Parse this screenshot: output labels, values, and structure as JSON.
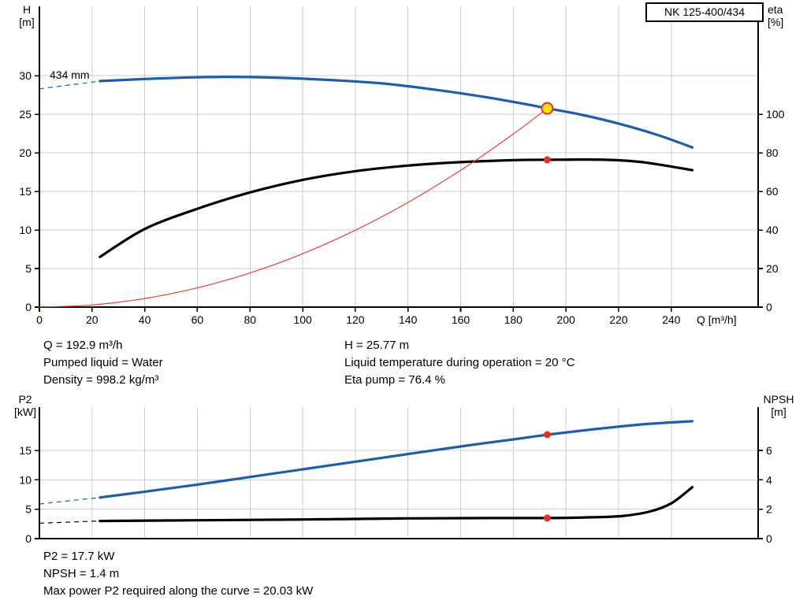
{
  "title_box": "NK 125-400/434",
  "impeller_label": "434 mm",
  "axis_labels": {
    "h": [
      "H",
      "[m]"
    ],
    "eta": [
      "eta",
      "[%]"
    ],
    "p2": [
      "P2",
      "[kW]"
    ],
    "npsh": [
      "NPSH",
      "[m]"
    ],
    "q": "Q [m³/h]"
  },
  "colors": {
    "curve_blue": "#1d5fa7",
    "curve_black": "#000000",
    "curve_red": "#e8403a",
    "marker_red": "#e33029",
    "duty_fill": "#ffdf00",
    "grid": "#cccccc",
    "axis": "#000000"
  },
  "info_top": {
    "q": "Q = 192.9 m³/h",
    "pumped_liquid": "Pumped liquid = Water",
    "density": "Density = 998.2 kg/m³",
    "h": "H = 25.77 m",
    "liquid_temperature": "Liquid temperature during operation = 20 °C",
    "eta_pump": "Eta pump = 76.4 %"
  },
  "info_bottom": {
    "p2": "P2 = 17.7 kW",
    "npsh": "NPSH = 1.4 m",
    "max_power": "Max power P2 required along the curve = 20.03 kW"
  },
  "chart_data": [
    {
      "type": "line",
      "name": "qh-eta-chart",
      "title": "NK 125-400/434",
      "xlabel": "Q [m³/h]",
      "ylabel_left": "H [m]",
      "ylabel_right": "eta [%]",
      "xlim": [
        0,
        273
      ],
      "xticks": [
        0,
        20,
        40,
        60,
        80,
        100,
        120,
        140,
        160,
        180,
        200,
        220,
        240
      ],
      "ylim_left": [
        0,
        39
      ],
      "yticks_left": [
        0,
        5,
        10,
        15,
        20,
        25,
        30
      ],
      "ylim_right": [
        0,
        156
      ],
      "yticks_right": [
        0,
        20,
        40,
        60,
        80,
        100
      ],
      "grid": true,
      "series": [
        {
          "name": "head-curve-434mm",
          "axis": "left",
          "color": "#1d5fa7",
          "width": 3.2,
          "dashed_prefix": [
            [
              0,
              28.3
            ],
            [
              23,
              29.3
            ]
          ],
          "points": [
            [
              23,
              29.3
            ],
            [
              45,
              29.65
            ],
            [
              70,
              29.85
            ],
            [
              90,
              29.75
            ],
            [
              110,
              29.45
            ],
            [
              130,
              29.0
            ],
            [
              150,
              28.2
            ],
            [
              170,
              27.2
            ],
            [
              185,
              26.3
            ],
            [
              192.9,
              25.77
            ],
            [
              205,
              25.0
            ],
            [
              220,
              23.8
            ],
            [
              235,
              22.3
            ],
            [
              248,
              20.7
            ]
          ]
        },
        {
          "name": "efficiency-curve",
          "axis": "right",
          "color": "#000000",
          "width": 3.2,
          "points": [
            [
              23,
              26
            ],
            [
              40,
              40.5
            ],
            [
              60,
              51
            ],
            [
              80,
              59.5
            ],
            [
              100,
              66
            ],
            [
              120,
              70.5
            ],
            [
              140,
              73.4
            ],
            [
              160,
              75.2
            ],
            [
              180,
              76.2
            ],
            [
              193,
              76.4
            ],
            [
              215,
              76.4
            ],
            [
              230,
              75
            ],
            [
              248,
              71
            ]
          ]
        },
        {
          "name": "duty-system-curve",
          "axis": "left",
          "color": "#e8403a",
          "width": 1.2,
          "points": [
            [
              0,
              0
            ],
            [
              20,
              0.28
            ],
            [
              40,
              1.11
            ],
            [
              60,
              2.49
            ],
            [
              80,
              4.43
            ],
            [
              100,
              6.92
            ],
            [
              120,
              9.97
            ],
            [
              140,
              13.57
            ],
            [
              160,
              17.73
            ],
            [
              180,
              22.44
            ],
            [
              192.9,
              25.77
            ]
          ]
        }
      ],
      "markers": [
        {
          "name": "duty-point",
          "x": 192.9,
          "y": 25.77,
          "axis": "left",
          "r": 7,
          "fill": "#ffdf00",
          "stroke": "#e33029"
        },
        {
          "name": "efficiency-point",
          "x": 192.9,
          "y": 76.4,
          "axis": "right",
          "r": 4.5,
          "fill": "#e33029"
        }
      ]
    },
    {
      "type": "line",
      "name": "p2-npsh-chart",
      "xlabel": "",
      "ylabel_left": "P2 [kW]",
      "ylabel_right": "NPSH [m]",
      "xlim": [
        0,
        273
      ],
      "xticks": [
        0,
        20,
        40,
        60,
        80,
        100,
        120,
        140,
        160,
        180,
        200,
        220,
        240
      ],
      "ylim_left": [
        0,
        22.4
      ],
      "yticks_left": [
        0,
        5,
        10,
        15
      ],
      "ylim_right": [
        0,
        8.95
      ],
      "yticks_right": [
        0,
        2,
        4,
        6
      ],
      "grid": true,
      "series": [
        {
          "name": "p2-curve",
          "axis": "left",
          "color": "#1d5fa7",
          "width": 3.2,
          "dashed_prefix": [
            [
              0,
              5.9
            ],
            [
              23,
              7.0
            ]
          ],
          "points": [
            [
              23,
              7.0
            ],
            [
              40,
              8.0
            ],
            [
              60,
              9.2
            ],
            [
              80,
              10.5
            ],
            [
              100,
              11.8
            ],
            [
              120,
              13.1
            ],
            [
              140,
              14.4
            ],
            [
              160,
              15.7
            ],
            [
              180,
              16.9
            ],
            [
              192.9,
              17.7
            ],
            [
              210,
              18.6
            ],
            [
              230,
              19.5
            ],
            [
              248,
              20.0
            ]
          ]
        },
        {
          "name": "npsh-curve",
          "axis": "right",
          "color": "#000000",
          "width": 3.2,
          "dashed_prefix": [
            [
              0,
              1.05
            ],
            [
              23,
              1.2
            ]
          ],
          "points": [
            [
              23,
              1.2
            ],
            [
              60,
              1.25
            ],
            [
              100,
              1.3
            ],
            [
              140,
              1.38
            ],
            [
              170,
              1.4
            ],
            [
              192.9,
              1.4
            ],
            [
              210,
              1.45
            ],
            [
              222,
              1.55
            ],
            [
              232,
              1.85
            ],
            [
              240,
              2.4
            ],
            [
              248,
              3.5
            ]
          ]
        }
      ],
      "markers": [
        {
          "name": "p2-point",
          "x": 192.9,
          "y": 17.7,
          "axis": "left",
          "r": 4.5,
          "fill": "#e33029"
        },
        {
          "name": "npsh-point",
          "x": 192.9,
          "y": 1.4,
          "axis": "right",
          "r": 4.5,
          "fill": "#e33029"
        }
      ]
    }
  ]
}
